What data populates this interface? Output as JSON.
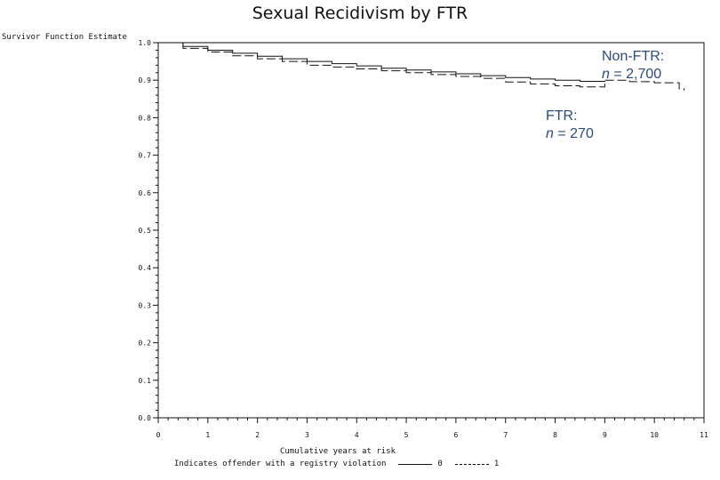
{
  "chart_data": {
    "type": "line",
    "title": "Sexual Recidivism by FTR",
    "ylabel": "Survivor Function Estimate",
    "xlabel": "Cumulative years at risk",
    "xlim": [
      0,
      11
    ],
    "ylim": [
      0.0,
      1.0
    ],
    "x_ticks": [
      "0",
      "1",
      "2",
      "3",
      "4",
      "5",
      "6",
      "7",
      "8",
      "9",
      "10",
      "11"
    ],
    "y_ticks": [
      "0.0",
      "0.1",
      "0.2",
      "0.3",
      "0.4",
      "0.5",
      "0.6",
      "0.7",
      "0.8",
      "0.9",
      "1.0"
    ],
    "legend": {
      "caption": "Indicates offender with a registry violation",
      "entries": [
        {
          "label": "0",
          "style": "solid"
        },
        {
          "label": "1",
          "style": "dashed"
        }
      ],
      "placement": "bottom"
    },
    "series": [
      {
        "name": "0",
        "style": "solid",
        "x": [
          0,
          0.5,
          1.0,
          1.5,
          2.0,
          2.5,
          3.0,
          3.5,
          4.0,
          4.5,
          5.0,
          5.5,
          6.0,
          6.5,
          7.0,
          7.5,
          8.0,
          8.5,
          9.0
        ],
        "y": [
          1.0,
          0.99,
          0.98,
          0.972,
          0.964,
          0.957,
          0.95,
          0.944,
          0.938,
          0.932,
          0.927,
          0.922,
          0.917,
          0.912,
          0.907,
          0.903,
          0.9,
          0.897,
          0.895
        ]
      },
      {
        "name": "1",
        "style": "dashed",
        "x": [
          0,
          0.5,
          1.0,
          1.5,
          2.0,
          2.5,
          3.0,
          3.5,
          4.0,
          4.5,
          5.0,
          5.5,
          6.0,
          6.5,
          7.0,
          7.5,
          8.0,
          8.5,
          9.0,
          9.5,
          10.0,
          10.5,
          10.6
        ],
        "y": [
          1.0,
          0.985,
          0.975,
          0.965,
          0.957,
          0.95,
          0.94,
          0.935,
          0.93,
          0.925,
          0.92,
          0.915,
          0.91,
          0.905,
          0.895,
          0.89,
          0.885,
          0.882,
          0.9,
          0.896,
          0.893,
          0.877,
          0.873
        ]
      }
    ],
    "annotations": [
      {
        "line1": "Non-FTR:",
        "n_label": "n",
        "rest": " = 2,700"
      },
      {
        "line1": "FTR:",
        "n_label": "n",
        "rest": " = 270"
      }
    ]
  }
}
